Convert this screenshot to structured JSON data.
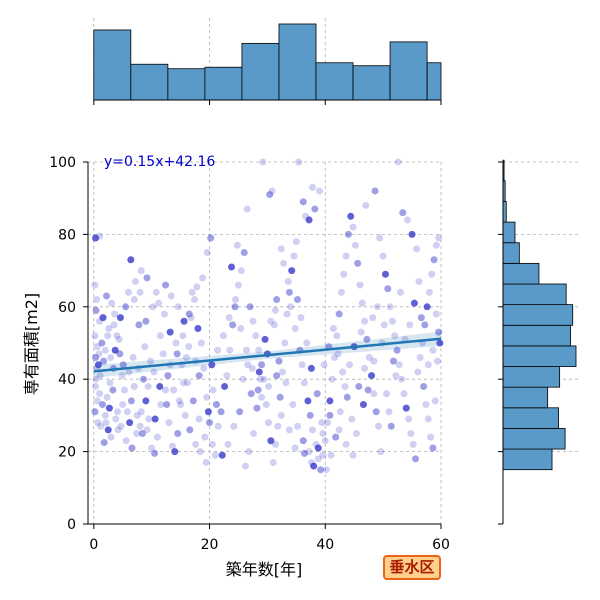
{
  "chart_data": {
    "type": "scatter",
    "xlabel": "築年数[年]",
    "ylabel": "専有面積[m2]",
    "xlim": [
      -1,
      60
    ],
    "ylim": [
      0,
      100
    ],
    "x_ticks": [
      "0",
      "20",
      "40",
      "60"
    ],
    "y_ticks": [
      "0",
      "20",
      "40",
      "60",
      "80",
      "100"
    ],
    "grid": true,
    "regression": {
      "label": "y=0.15x+42.16",
      "slope": 0.15,
      "intercept": 42.16,
      "color": "#1f77b4"
    },
    "point_color": "#2b2bc8",
    "hist_color": "#5a9ac8",
    "badge": "垂水区",
    "x_hist": {
      "edges": [
        0,
        6.4,
        12.8,
        19.2,
        25.6,
        32,
        38.4,
        44.8,
        51.2,
        57.6,
        64
      ],
      "counts": [
        47,
        24,
        21,
        22,
        38,
        51,
        25,
        23,
        39,
        25
      ]
    },
    "y_hist": {
      "edges": [
        15,
        20.7,
        26.4,
        32.1,
        37.8,
        43.5,
        49.2,
        54.9,
        60.6,
        66.3,
        72,
        77.7,
        83.4,
        89.1,
        94.8,
        100.5
      ],
      "counts": [
        45,
        57,
        51,
        41,
        52,
        67,
        62,
        64,
        58,
        33,
        15,
        11,
        3,
        2,
        1
      ]
    },
    "points": [
      [
        0.3,
        79
      ],
      [
        1,
        79.5
      ],
      [
        0.2,
        66
      ],
      [
        0.5,
        62
      ],
      [
        0.4,
        59
      ],
      [
        1,
        56
      ],
      [
        0.2,
        52
      ],
      [
        0.6,
        49
      ],
      [
        0.3,
        46
      ],
      [
        0.8,
        44
      ],
      [
        0.3,
        38
      ],
      [
        0.6,
        34
      ],
      [
        0.2,
        31
      ],
      [
        0.7,
        28
      ],
      [
        0.4,
        40
      ],
      [
        1,
        36
      ],
      [
        1.5,
        33
      ],
      [
        2,
        30
      ],
      [
        2.5,
        26
      ],
      [
        3,
        24
      ],
      [
        1.8,
        22.5
      ],
      [
        1.2,
        27
      ],
      [
        2.3,
        35
      ],
      [
        2.8,
        39
      ],
      [
        3.4,
        43
      ],
      [
        2,
        48
      ],
      [
        2.6,
        54
      ],
      [
        1.6,
        57
      ],
      [
        2.2,
        63
      ],
      [
        3.1,
        61
      ],
      [
        3.6,
        58
      ],
      [
        4,
        52
      ],
      [
        4.5,
        47
      ],
      [
        4.9,
        41
      ],
      [
        5.3,
        37
      ],
      [
        5.8,
        31
      ],
      [
        6.2,
        28
      ],
      [
        4.2,
        26
      ],
      [
        3.8,
        29
      ],
      [
        5,
        33
      ],
      [
        6.5,
        34
      ],
      [
        7,
        38
      ],
      [
        7.5,
        30
      ],
      [
        8,
        27
      ],
      [
        8.4,
        25
      ],
      [
        9,
        34
      ],
      [
        9.5,
        29
      ],
      [
        10,
        21
      ],
      [
        10.5,
        19.5
      ],
      [
        11,
        24
      ],
      [
        9.8,
        45
      ],
      [
        8.8,
        49
      ],
      [
        7.8,
        55
      ],
      [
        7,
        62
      ],
      [
        6.4,
        73
      ],
      [
        8,
        64
      ],
      [
        9,
        56
      ],
      [
        10.2,
        60
      ],
      [
        11.5,
        52
      ],
      [
        12,
        47
      ],
      [
        12.6,
        33
      ],
      [
        13,
        28
      ],
      [
        13.6,
        21.5
      ],
      [
        14,
        20
      ],
      [
        14.5,
        25
      ],
      [
        15,
        33
      ],
      [
        15.5,
        39
      ],
      [
        16,
        46
      ],
      [
        16.5,
        58
      ],
      [
        17,
        64
      ],
      [
        17.4,
        62
      ],
      [
        16.8,
        57
      ],
      [
        18,
        54
      ],
      [
        18.6,
        50
      ],
      [
        19,
        43
      ],
      [
        19.5,
        35
      ],
      [
        20,
        28
      ],
      [
        20.5,
        22
      ],
      [
        21,
        19
      ],
      [
        21.5,
        27
      ],
      [
        22,
        31
      ],
      [
        22.6,
        38
      ],
      [
        23,
        41
      ],
      [
        23.5,
        48
      ],
      [
        24,
        55
      ],
      [
        24.5,
        62
      ],
      [
        25,
        66
      ],
      [
        25.5,
        70
      ],
      [
        26,
        75
      ],
      [
        26.5,
        87
      ],
      [
        23.8,
        71
      ],
      [
        24.8,
        77
      ],
      [
        20.2,
        79
      ],
      [
        19.6,
        75
      ],
      [
        18.8,
        68
      ],
      [
        17.8,
        65.5
      ],
      [
        12.4,
        66
      ],
      [
        13.4,
        63
      ],
      [
        14.6,
        60
      ],
      [
        15.6,
        56
      ],
      [
        27,
        60
      ],
      [
        27.5,
        56
      ],
      [
        28,
        52
      ],
      [
        28.5,
        48
      ],
      [
        29,
        44
      ],
      [
        29.4,
        40
      ],
      [
        29.8,
        33
      ],
      [
        30.2,
        28
      ],
      [
        30.6,
        23
      ],
      [
        31,
        17
      ],
      [
        31.4,
        22
      ],
      [
        31.8,
        27
      ],
      [
        32.2,
        35
      ],
      [
        32.6,
        42
      ],
      [
        33,
        50
      ],
      [
        33.4,
        58
      ],
      [
        33.8,
        64
      ],
      [
        34.2,
        70
      ],
      [
        34.6,
        74
      ],
      [
        35,
        78
      ],
      [
        30.4,
        91
      ],
      [
        30.8,
        92
      ],
      [
        29.2,
        100
      ],
      [
        35.4,
        100
      ],
      [
        36.2,
        89
      ],
      [
        36.6,
        85
      ],
      [
        37.2,
        84
      ],
      [
        37.8,
        93
      ],
      [
        38.2,
        87
      ],
      [
        39,
        92
      ],
      [
        34,
        60
      ],
      [
        34.8,
        54
      ],
      [
        35.6,
        48
      ],
      [
        36,
        44
      ],
      [
        36.4,
        39
      ],
      [
        37,
        34
      ],
      [
        37.4,
        30
      ],
      [
        37.8,
        26
      ],
      [
        38.4,
        22
      ],
      [
        38.8,
        18
      ],
      [
        39.2,
        15
      ],
      [
        39.6,
        19
      ],
      [
        40,
        23
      ],
      [
        40.4,
        28
      ],
      [
        40.8,
        34
      ],
      [
        41.2,
        40
      ],
      [
        41.6,
        46
      ],
      [
        42,
        52
      ],
      [
        42.4,
        58
      ],
      [
        42.8,
        64
      ],
      [
        43.2,
        69
      ],
      [
        43.6,
        74
      ],
      [
        44,
        80
      ],
      [
        44.4,
        85
      ],
      [
        44.8,
        82
      ],
      [
        45.2,
        77
      ],
      [
        45.6,
        72
      ],
      [
        46,
        66
      ],
      [
        46.4,
        61
      ],
      [
        46.8,
        56
      ],
      [
        47.2,
        51
      ],
      [
        47.6,
        46
      ],
      [
        48,
        41
      ],
      [
        48.4,
        36
      ],
      [
        48.8,
        31
      ],
      [
        49.2,
        27
      ],
      [
        49.6,
        20
      ],
      [
        47,
        88
      ],
      [
        48.6,
        92
      ],
      [
        49.4,
        79
      ],
      [
        50,
        74
      ],
      [
        50.4,
        69
      ],
      [
        50.8,
        65
      ],
      [
        51.2,
        60
      ],
      [
        51.6,
        56
      ],
      [
        52,
        52
      ],
      [
        52.4,
        48
      ],
      [
        52.8,
        44
      ],
      [
        53.2,
        40
      ],
      [
        53.6,
        36
      ],
      [
        54,
        32
      ],
      [
        54.4,
        29
      ],
      [
        54.8,
        25
      ],
      [
        55.2,
        22
      ],
      [
        55.6,
        18
      ],
      [
        56,
        42
      ],
      [
        56.4,
        46
      ],
      [
        56.8,
        50
      ],
      [
        57.2,
        55
      ],
      [
        57.6,
        60
      ],
      [
        58,
        64
      ],
      [
        58.4,
        69
      ],
      [
        58.8,
        73
      ],
      [
        59.2,
        77
      ],
      [
        59.6,
        79
      ],
      [
        52.6,
        100
      ],
      [
        53.4,
        86
      ],
      [
        54.2,
        84
      ],
      [
        55,
        80
      ],
      [
        55.8,
        76
      ],
      [
        57,
        38
      ],
      [
        57.4,
        33
      ],
      [
        57.8,
        29
      ],
      [
        58.2,
        24
      ],
      [
        58.6,
        21
      ],
      [
        59,
        34
      ],
      [
        59.4,
        45
      ],
      [
        59.8,
        50
      ],
      [
        56.6,
        57
      ],
      [
        53,
        64
      ],
      [
        50.6,
        36
      ],
      [
        51,
        31
      ],
      [
        51.4,
        27
      ],
      [
        49,
        60
      ],
      [
        48.2,
        57
      ],
      [
        46.2,
        53
      ],
      [
        45,
        49
      ],
      [
        44.2,
        44
      ],
      [
        43.4,
        38
      ],
      [
        42.6,
        31
      ],
      [
        41.8,
        24
      ],
      [
        41,
        19
      ],
      [
        40.2,
        15
      ],
      [
        39.4,
        28
      ],
      [
        38.6,
        36
      ],
      [
        37.6,
        43
      ],
      [
        36.8,
        50
      ],
      [
        35.8,
        57
      ],
      [
        35.2,
        62
      ],
      [
        33.6,
        67
      ],
      [
        32.8,
        72
      ],
      [
        32.4,
        76
      ],
      [
        31.6,
        62
      ],
      [
        31.2,
        55
      ],
      [
        30,
        47
      ],
      [
        28.8,
        40
      ],
      [
        28.2,
        32
      ],
      [
        27.6,
        25
      ],
      [
        26.8,
        20
      ],
      [
        26.2,
        16
      ],
      [
        25.2,
        31
      ],
      [
        24.2,
        27
      ],
      [
        23.2,
        22
      ],
      [
        22.2,
        19
      ],
      [
        21.2,
        33
      ],
      [
        20.6,
        37
      ],
      [
        19.2,
        24
      ],
      [
        18.2,
        29
      ],
      [
        17.2,
        34
      ],
      [
        16.2,
        39
      ],
      [
        15.2,
        44
      ],
      [
        14.2,
        50
      ],
      [
        13.2,
        53
      ],
      [
        12.2,
        58
      ],
      [
        11.2,
        61
      ],
      [
        10.8,
        64
      ],
      [
        9.2,
        68
      ],
      [
        8.2,
        70
      ],
      [
        7.2,
        67
      ],
      [
        6,
        64
      ],
      [
        5.5,
        60
      ],
      [
        4.6,
        57
      ],
      [
        3.5,
        55
      ],
      [
        2.4,
        52
      ],
      [
        1.4,
        50
      ],
      [
        0.9,
        47
      ],
      [
        0.5,
        43
      ],
      [
        1.1,
        41
      ],
      [
        1.7,
        45
      ],
      [
        2.9,
        46
      ],
      [
        3.7,
        48
      ],
      [
        4.4,
        51
      ],
      [
        5.1,
        44
      ],
      [
        6.1,
        42
      ],
      [
        6.8,
        46
      ],
      [
        7.7,
        43
      ],
      [
        8.6,
        40
      ],
      [
        9.4,
        38
      ],
      [
        10.4,
        42
      ],
      [
        11.4,
        38
      ],
      [
        12.8,
        41
      ],
      [
        13.8,
        37
      ],
      [
        14.8,
        34
      ],
      [
        15.8,
        30
      ],
      [
        16.6,
        26
      ],
      [
        17.6,
        22
      ],
      [
        18.4,
        20
      ],
      [
        19.4,
        17
      ],
      [
        20.4,
        44
      ],
      [
        21.4,
        48
      ],
      [
        22.4,
        52
      ],
      [
        23.4,
        57
      ],
      [
        24.4,
        60
      ],
      [
        25.4,
        54
      ],
      [
        26.4,
        48
      ],
      [
        27.4,
        43
      ],
      [
        28.4,
        37
      ],
      [
        29.6,
        51
      ],
      [
        30.6,
        56
      ],
      [
        31.4,
        59
      ],
      [
        32,
        45
      ],
      [
        33.2,
        39
      ],
      [
        34.4,
        33
      ],
      [
        35.2,
        27
      ],
      [
        36.2,
        23
      ],
      [
        37.2,
        20
      ],
      [
        38,
        16
      ],
      [
        39.8,
        44
      ],
      [
        40.6,
        49
      ],
      [
        41.4,
        54
      ],
      [
        42.2,
        47
      ],
      [
        43,
        42
      ],
      [
        43.8,
        35
      ],
      [
        44.6,
        29
      ],
      [
        45.4,
        25
      ],
      [
        46.6,
        33
      ],
      [
        47.4,
        37
      ],
      [
        48.4,
        45
      ],
      [
        49.8,
        50
      ],
      [
        50.2,
        55
      ],
      [
        51.8,
        45
      ],
      [
        52.2,
        41
      ],
      [
        53.8,
        51
      ],
      [
        54.6,
        55
      ],
      [
        55.4,
        61
      ],
      [
        56.2,
        67
      ],
      [
        57.8,
        44
      ],
      [
        58.6,
        48
      ],
      [
        59.6,
        53
      ],
      [
        59.2,
        58
      ],
      [
        25.8,
        40
      ],
      [
        26.6,
        44
      ],
      [
        27.2,
        36
      ],
      [
        28.6,
        42
      ],
      [
        29,
        35
      ],
      [
        30.2,
        38
      ],
      [
        31.6,
        41
      ],
      [
        32.4,
        30
      ],
      [
        33.8,
        26
      ],
      [
        34.8,
        21
      ],
      [
        36.4,
        19.5
      ],
      [
        37.6,
        17
      ],
      [
        38.8,
        21
      ],
      [
        39.6,
        25
      ],
      [
        40.8,
        30
      ],
      [
        42.4,
        26
      ],
      [
        43.6,
        22
      ],
      [
        44.8,
        19
      ],
      [
        45.8,
        38
      ],
      [
        46.8,
        43
      ],
      [
        2.1,
        28
      ],
      [
        2.7,
        32
      ],
      [
        3.3,
        37
      ],
      [
        4.1,
        31
      ],
      [
        4.7,
        27
      ],
      [
        5.6,
        23
      ],
      [
        6.6,
        21
      ],
      [
        7.4,
        25
      ],
      [
        8.2,
        31
      ],
      [
        9.2,
        26
      ],
      [
        10.6,
        29
      ],
      [
        11.6,
        33
      ],
      [
        12.4,
        37
      ],
      [
        13.2,
        44
      ],
      [
        14.4,
        47
      ],
      [
        15.4,
        52
      ],
      [
        16.4,
        49
      ],
      [
        17.6,
        45
      ],
      [
        18.2,
        41
      ],
      [
        19.8,
        31
      ]
    ]
  }
}
